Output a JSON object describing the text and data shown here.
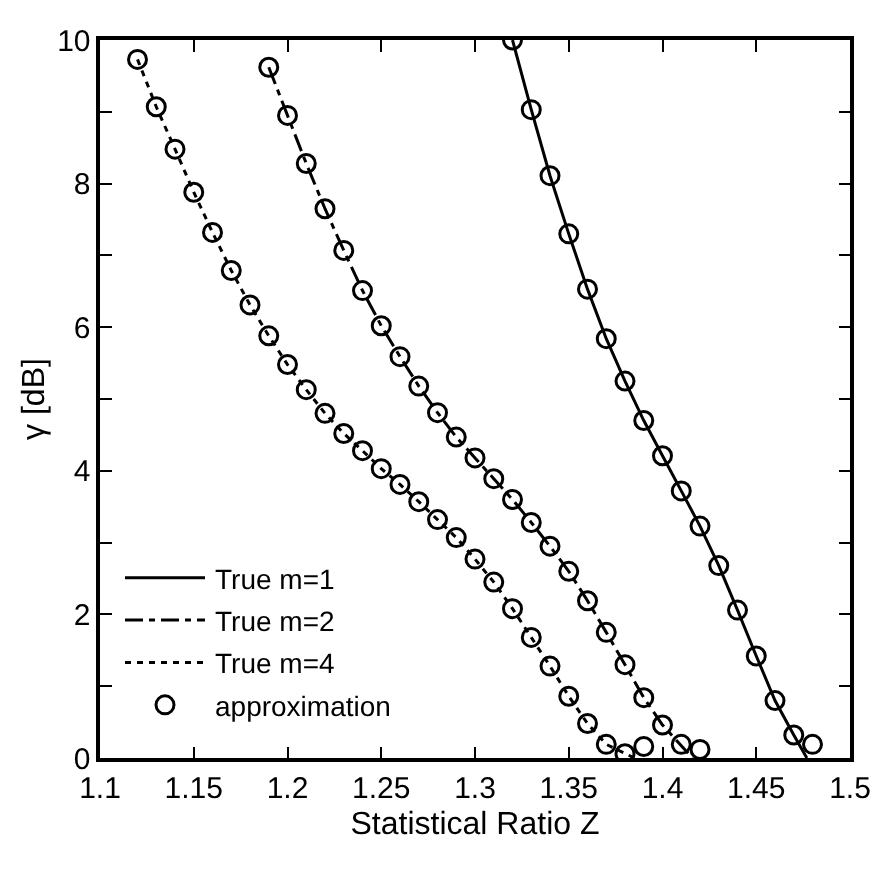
{
  "chart_data": {
    "type": "line",
    "xlabel": "Statistical Ratio Z",
    "ylabel": "γ [dB]",
    "xlim": [
      1.1,
      1.5
    ],
    "ylim": [
      0,
      10
    ],
    "xticks": [
      1.1,
      1.15,
      1.2,
      1.25,
      1.3,
      1.35,
      1.4,
      1.45,
      1.5
    ],
    "yticks": [
      0,
      {
        "value": 1,
        "label": null
      },
      2,
      {
        "value": 3,
        "label": null
      },
      4,
      {
        "value": 5,
        "label": null
      },
      6,
      {
        "value": 7,
        "label": null
      },
      8,
      {
        "value": 9,
        "label": null
      },
      10
    ],
    "legend": "bottom left",
    "series": [
      {
        "name": "True m=1",
        "color": "#000000",
        "line_style": "solid",
        "marker": "none",
        "x": [
          1.32,
          1.33,
          1.34,
          1.35,
          1.36,
          1.37,
          1.38,
          1.39,
          1.4,
          1.41,
          1.42,
          1.43,
          1.44,
          1.45,
          1.46,
          1.47,
          1.477
        ],
        "values": [
          10,
          9.03,
          8.11,
          7.3,
          6.53,
          5.84,
          5.25,
          4.7,
          4.21,
          3.72,
          3.23,
          2.68,
          2.06,
          1.42,
          0.8,
          0.32,
          0
        ]
      },
      {
        "name": "True m=2",
        "color": "#000000",
        "line_style": "dashdot",
        "marker": "none",
        "x": [
          1.19,
          1.2,
          1.21,
          1.22,
          1.23,
          1.24,
          1.25,
          1.26,
          1.27,
          1.28,
          1.29,
          1.3,
          1.31,
          1.32,
          1.33,
          1.34,
          1.35,
          1.36,
          1.37,
          1.38,
          1.39,
          1.4,
          1.416
        ],
        "values": [
          9.62,
          8.95,
          8.28,
          7.65,
          7.07,
          6.51,
          6.02,
          5.59,
          5.18,
          4.81,
          4.47,
          4.18,
          3.89,
          3.6,
          3.28,
          2.95,
          2.6,
          2.19,
          1.75,
          1.3,
          0.84,
          0.46,
          0
        ]
      },
      {
        "name": "True m=4",
        "color": "#000000",
        "line_style": "dotted",
        "marker": "none",
        "x": [
          1.12,
          1.13,
          1.14,
          1.15,
          1.16,
          1.17,
          1.18,
          1.19,
          1.2,
          1.21,
          1.22,
          1.23,
          1.24,
          1.25,
          1.26,
          1.27,
          1.28,
          1.29,
          1.3,
          1.31,
          1.32,
          1.33,
          1.34,
          1.35,
          1.36,
          1.37,
          1.385
        ],
        "values": [
          9.73,
          9.07,
          8.48,
          7.88,
          7.32,
          6.79,
          6.31,
          5.88,
          5.48,
          5.13,
          4.8,
          4.52,
          4.28,
          4.03,
          3.81,
          3.57,
          3.32,
          3.07,
          2.77,
          2.45,
          2.08,
          1.68,
          1.28,
          0.86,
          0.48,
          0.19,
          0
        ]
      },
      {
        "name": "approximation",
        "color": "#000000",
        "type": "scatter",
        "marker": "circle",
        "x": [
          1.32,
          1.33,
          1.34,
          1.35,
          1.36,
          1.37,
          1.38,
          1.39,
          1.4,
          1.41,
          1.42,
          1.43,
          1.44,
          1.45,
          1.46,
          1.47,
          1.48,
          1.19,
          1.2,
          1.21,
          1.22,
          1.23,
          1.24,
          1.25,
          1.26,
          1.27,
          1.28,
          1.29,
          1.3,
          1.31,
          1.32,
          1.33,
          1.34,
          1.35,
          1.36,
          1.37,
          1.38,
          1.39,
          1.4,
          1.41,
          1.42,
          1.12,
          1.13,
          1.14,
          1.15,
          1.16,
          1.17,
          1.18,
          1.19,
          1.2,
          1.21,
          1.22,
          1.23,
          1.24,
          1.25,
          1.26,
          1.27,
          1.28,
          1.29,
          1.3,
          1.31,
          1.32,
          1.33,
          1.34,
          1.35,
          1.36,
          1.37,
          1.38,
          1.39
        ],
        "values": [
          10,
          9.03,
          8.11,
          7.3,
          6.53,
          5.84,
          5.25,
          4.7,
          4.21,
          3.72,
          3.23,
          2.68,
          2.06,
          1.42,
          0.8,
          0.32,
          0.19,
          9.62,
          8.95,
          8.28,
          7.65,
          7.07,
          6.51,
          6.02,
          5.59,
          5.18,
          4.81,
          4.47,
          4.18,
          3.89,
          3.6,
          3.28,
          2.95,
          2.6,
          2.19,
          1.75,
          1.3,
          0.84,
          0.46,
          0.19,
          0.12,
          9.73,
          9.07,
          8.48,
          7.88,
          7.32,
          6.79,
          6.31,
          5.88,
          5.48,
          5.13,
          4.8,
          4.52,
          4.28,
          4.03,
          3.81,
          3.57,
          3.32,
          3.07,
          2.77,
          2.45,
          2.08,
          1.68,
          1.28,
          0.86,
          0.48,
          0.19,
          0.06,
          0.16
        ]
      }
    ]
  }
}
